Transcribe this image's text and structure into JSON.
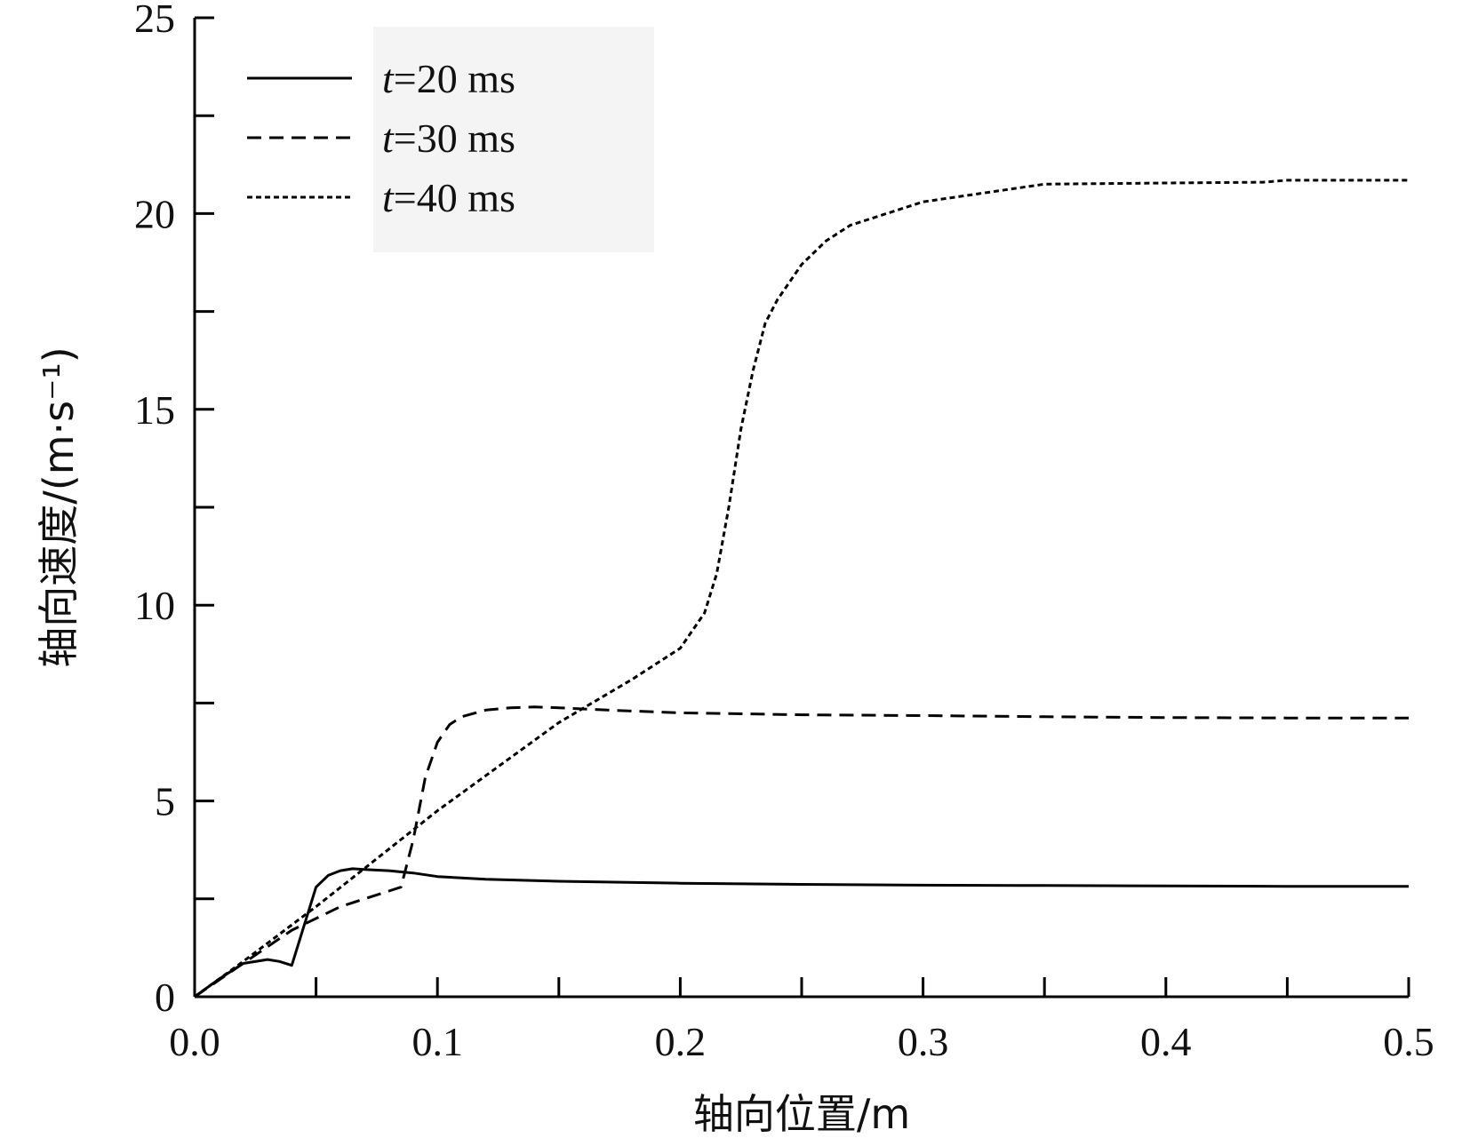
{
  "chart_data": {
    "type": "line",
    "title": "",
    "xlabel": "轴向位置/m",
    "ylabel": "轴向速度/(m·s⁻¹)",
    "xlim": [
      0,
      0.5
    ],
    "ylim": [
      0,
      25
    ],
    "xticks": [
      "0.0",
      "0.1",
      "0.2",
      "0.3",
      "0.4",
      "0.5"
    ],
    "yticks": [
      "0",
      "5",
      "10",
      "15",
      "20",
      "25"
    ],
    "grid": false,
    "legend_position": "top-left",
    "series": [
      {
        "name": "t=20 ms",
        "name_italic": "t",
        "name_rest": "=20 ms",
        "style": "solid",
        "x": [
          0,
          0.01,
          0.02,
          0.03,
          0.035,
          0.04,
          0.045,
          0.05,
          0.055,
          0.06,
          0.065,
          0.07,
          0.08,
          0.09,
          0.1,
          0.12,
          0.15,
          0.2,
          0.25,
          0.3,
          0.35,
          0.4,
          0.45,
          0.5
        ],
        "y": [
          0,
          0.45,
          0.85,
          0.95,
          0.9,
          0.8,
          1.8,
          2.8,
          3.1,
          3.22,
          3.27,
          3.25,
          3.22,
          3.16,
          3.07,
          3.0,
          2.95,
          2.9,
          2.87,
          2.85,
          2.84,
          2.83,
          2.82,
          2.82
        ]
      },
      {
        "name": "t=30 ms",
        "name_italic": "t",
        "name_rest": "=30 ms",
        "style": "dashed",
        "x": [
          0,
          0.02,
          0.04,
          0.06,
          0.08,
          0.085,
          0.09,
          0.095,
          0.1,
          0.105,
          0.11,
          0.12,
          0.13,
          0.14,
          0.15,
          0.17,
          0.2,
          0.25,
          0.3,
          0.35,
          0.4,
          0.45,
          0.5
        ],
        "y": [
          0,
          0.85,
          1.7,
          2.3,
          2.7,
          2.8,
          4.0,
          5.6,
          6.5,
          6.95,
          7.15,
          7.32,
          7.38,
          7.4,
          7.38,
          7.32,
          7.25,
          7.2,
          7.18,
          7.15,
          7.13,
          7.12,
          7.12
        ]
      },
      {
        "name": "t=40 ms",
        "name_italic": "t",
        "name_rest": "=40 ms",
        "style": "dotted",
        "x": [
          0,
          0.02,
          0.05,
          0.1,
          0.15,
          0.18,
          0.2,
          0.21,
          0.215,
          0.22,
          0.225,
          0.23,
          0.235,
          0.24,
          0.25,
          0.26,
          0.27,
          0.3,
          0.35,
          0.4,
          0.44,
          0.45,
          0.5
        ],
        "y": [
          0,
          0.9,
          2.3,
          4.75,
          7.0,
          8.1,
          8.9,
          9.8,
          10.8,
          12.5,
          14.5,
          16.0,
          17.2,
          17.8,
          18.7,
          19.3,
          19.7,
          20.3,
          20.75,
          20.78,
          20.8,
          20.85,
          20.85
        ]
      }
    ]
  }
}
